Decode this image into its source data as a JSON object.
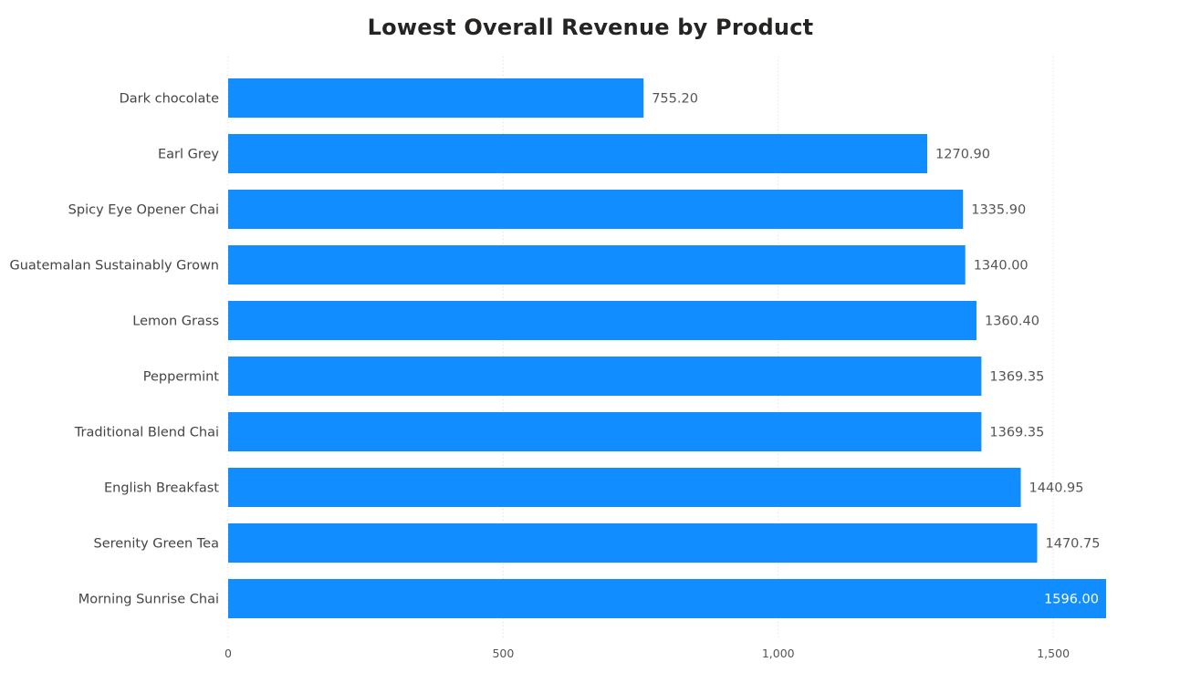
{
  "chart_data": {
    "type": "bar",
    "orientation": "horizontal",
    "title": "Lowest Overall Revenue by Product",
    "categories": [
      "Dark chocolate",
      "Earl Grey",
      "Spicy Eye Opener Chai",
      "Guatemalan Sustainably Grown",
      "Lemon Grass",
      "Peppermint",
      "Traditional Blend Chai",
      "English Breakfast",
      "Serenity Green Tea",
      "Morning Sunrise Chai"
    ],
    "values": [
      755.2,
      1270.9,
      1335.9,
      1340.0,
      1360.4,
      1369.35,
      1369.35,
      1440.95,
      1470.75,
      1596.0
    ],
    "value_labels": [
      "755.20",
      "1270.90",
      "1335.90",
      "1340.00",
      "1360.40",
      "1369.35",
      "1369.35",
      "1440.95",
      "1470.75",
      "1596.00"
    ],
    "x_ticks": [
      0,
      500,
      1000,
      1500
    ],
    "x_tick_labels": [
      "0",
      "500",
      "1,000",
      "1,500"
    ],
    "xlim": [
      0,
      1596
    ],
    "xlabel": "",
    "ylabel": "",
    "grid": true,
    "bar_color": "#118DFF"
  }
}
